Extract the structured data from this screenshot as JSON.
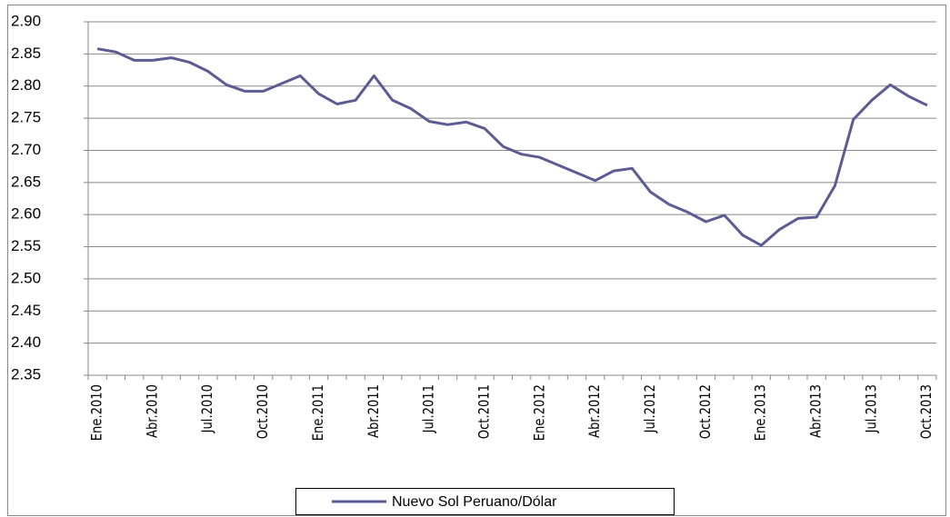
{
  "chart_data": {
    "type": "line",
    "categories": [
      "Ene.2010",
      null,
      null,
      "Abr.2010",
      null,
      null,
      "Jul.2010",
      null,
      null,
      "Oct.2010",
      null,
      null,
      "Ene.2011",
      null,
      null,
      "Abr.2011",
      null,
      null,
      "Jul.2011",
      null,
      null,
      "Oct.2011",
      null,
      null,
      "Ene.2012",
      null,
      null,
      "Abr.2012",
      null,
      null,
      "Jul.2012",
      null,
      null,
      "Oct.2012",
      null,
      null,
      "Ene.2013",
      null,
      null,
      "Abr.2013",
      null,
      null,
      "Jul.2013",
      null,
      null,
      "Oct.2013"
    ],
    "series": [
      {
        "name": "Nuevo Sol Peruano/Dólar",
        "color": "#5b5c91",
        "values": [
          2.858,
          2.853,
          2.84,
          2.84,
          2.844,
          2.837,
          2.823,
          2.802,
          2.792,
          2.792,
          2.804,
          2.816,
          2.788,
          2.772,
          2.778,
          2.816,
          2.778,
          2.765,
          2.745,
          2.74,
          2.744,
          2.734,
          2.706,
          2.694,
          2.689,
          2.677,
          2.665,
          2.653,
          2.668,
          2.672,
          2.635,
          2.616,
          2.604,
          2.589,
          2.599,
          2.568,
          2.552,
          2.577,
          2.594,
          2.596,
          2.645,
          2.748,
          2.778,
          2.802,
          2.784,
          2.77
        ]
      }
    ],
    "ylim": [
      2.35,
      2.9
    ],
    "yticks": [
      2.35,
      {
        "value": 2.4,
        "label": "2.40"
      },
      2.45,
      {
        "value": 2.5,
        "label": "2.50"
      },
      2.55,
      {
        "value": 2.6,
        "label": "2.60"
      },
      2.65,
      {
        "value": 2.7,
        "label": "2.70"
      },
      2.75,
      {
        "value": 2.8,
        "label": "2.80"
      },
      2.85,
      {
        "value": 2.9,
        "label": "2.90"
      }
    ],
    "grid": true,
    "legend": "bottom"
  }
}
